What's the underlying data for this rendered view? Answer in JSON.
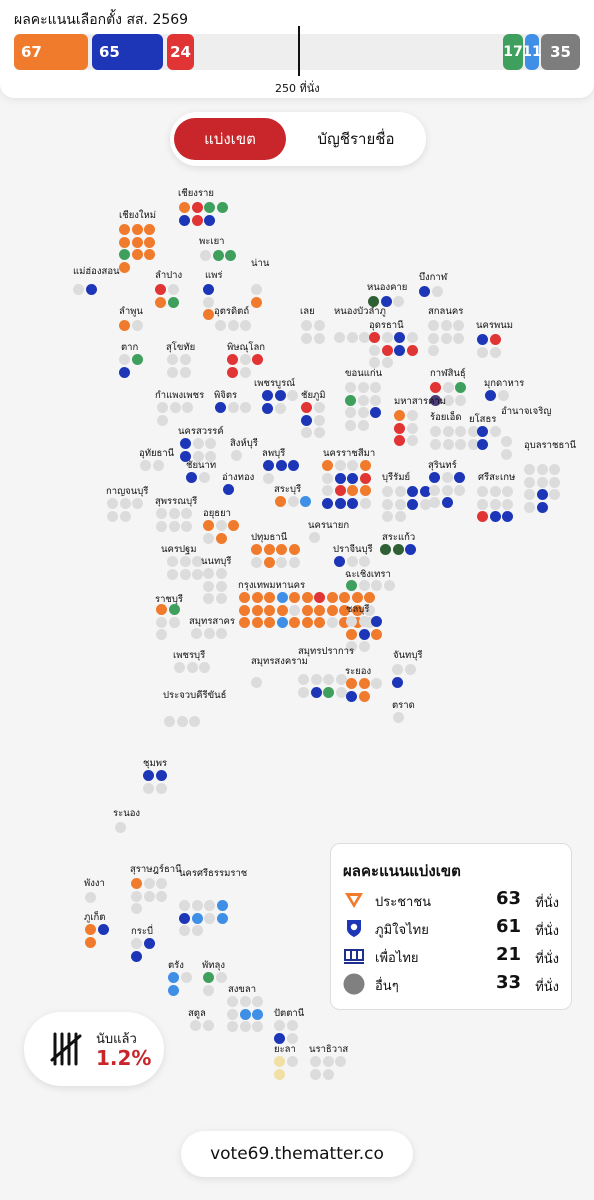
{
  "header": {
    "title": "ผลคะแนนเลือกตั้ง สส. 2569",
    "majority_label": "250 ที่นั่ง",
    "seat_bar": [
      {
        "party": "ประชาชน",
        "seats": "67",
        "color": "#f07b2d"
      },
      {
        "party": "ภูมิใจไทย",
        "seats": "65",
        "color": "#1d36b8"
      },
      {
        "party": "เพื่อไทย",
        "seats": "24",
        "color": "#e13434"
      },
      {
        "party": "green",
        "seats": "17",
        "color": "#3f9f5d"
      },
      {
        "party": "blue",
        "seats": "11",
        "color": "#3f8fe6"
      },
      {
        "party": "อื่นๆ",
        "seats": "35",
        "color": "#7d7d7d"
      }
    ]
  },
  "tabs": {
    "constituency": "แบ่งเขต",
    "party_list": "บัญชีรายชื่อ"
  },
  "colors": {
    "orange": "#f07b2d",
    "navy": "#1d36b8",
    "red": "#e13434",
    "green": "#3f9f5d",
    "lightblue": "#3f8fe6",
    "gray": "#dcdcdc",
    "darkgreen": "#2f5f34",
    "purple": "#4a3a78",
    "cream": "#f1e0a6"
  },
  "map_provinces": [
    {
      "name": "เชียงราย",
      "dots": [
        "o",
        "r",
        "g",
        "g",
        "n",
        "r",
        "n"
      ]
    },
    {
      "name": "เชียงใหม่",
      "dots": [
        "o",
        "o",
        "o",
        "o",
        "o",
        "o",
        "g",
        "o",
        "o",
        "o"
      ]
    },
    {
      "name": "พะเยา",
      "dots": [
        "x",
        "g",
        "g"
      ]
    },
    {
      "name": "น่าน",
      "dots": [
        "x",
        "o"
      ]
    },
    {
      "name": "แม่ฮ่องสอน",
      "dots": [
        "x",
        "n"
      ]
    },
    {
      "name": "ลำปาง",
      "dots": [
        "r",
        "x",
        "o",
        "g"
      ]
    },
    {
      "name": "แพร่",
      "dots": [
        "n",
        "x",
        "o"
      ]
    },
    {
      "name": "ลำพูน",
      "dots": [
        "o",
        "x"
      ]
    },
    {
      "name": "อุตรดิตถ์",
      "dots": [
        "x",
        "x",
        "x"
      ]
    },
    {
      "name": "เลย",
      "dots": [
        "x",
        "x",
        "x",
        "x"
      ]
    },
    {
      "name": "หนองบัวลำภู",
      "dots": [
        "x",
        "x",
        "x"
      ]
    },
    {
      "name": "หนองคาย",
      "dots": [
        "dg",
        "n",
        "x"
      ]
    },
    {
      "name": "บึงกาฬ",
      "dots": [
        "n",
        "x"
      ]
    },
    {
      "name": "อุดรธานี",
      "dots": [
        "r",
        "x",
        "n",
        "x",
        "x",
        "r",
        "n",
        "r",
        "x",
        "x"
      ]
    },
    {
      "name": "สกลนคร",
      "dots": [
        "x",
        "x",
        "x",
        "x",
        "x",
        "x",
        "x"
      ]
    },
    {
      "name": "นครพนม",
      "dots": [
        "n",
        "r",
        "x",
        "x"
      ]
    },
    {
      "name": "ตาก",
      "dots": [
        "x",
        "g",
        "n"
      ]
    },
    {
      "name": "สุโขทัย",
      "dots": [
        "x",
        "x",
        "x",
        "x"
      ]
    },
    {
      "name": "พิษณุโลก",
      "dots": [
        "r",
        "x",
        "r",
        "r",
        "x"
      ]
    },
    {
      "name": "เพชรบูรณ์",
      "dots": [
        "n",
        "n",
        "x",
        "n",
        "x"
      ]
    },
    {
      "name": "ชัยภูมิ",
      "dots": [
        "r",
        "x",
        "n",
        "x",
        "x",
        "x"
      ]
    },
    {
      "name": "ขอนแก่น",
      "dots": [
        "x",
        "x",
        "x",
        "g",
        "x",
        "x",
        "x",
        "x",
        "n",
        "x",
        "x"
      ]
    },
    {
      "name": "กาฬสินธุ์",
      "dots": [
        "r",
        "x",
        "g",
        "p",
        "x",
        "x"
      ]
    },
    {
      "name": "มุกดาหาร",
      "dots": [
        "n",
        "x"
      ]
    },
    {
      "name": "กำแพงเพชร",
      "dots": [
        "x",
        "x",
        "x",
        "x"
      ]
    },
    {
      "name": "พิจิตร",
      "dots": [
        "n",
        "x",
        "x"
      ]
    },
    {
      "name": "มหาสารคาม",
      "dots": [
        "o",
        "x",
        "r",
        "x",
        "r",
        "x"
      ]
    },
    {
      "name": "ร้อยเอ็ด",
      "dots": [
        "x",
        "x",
        "x",
        "x",
        "x",
        "x",
        "x",
        "x"
      ]
    },
    {
      "name": "ยโสธร",
      "dots": [
        "n",
        "x",
        "n"
      ]
    },
    {
      "name": "อำนาจเจริญ",
      "dots": [
        "x",
        "x"
      ]
    },
    {
      "name": "นครสวรรค์",
      "dots": [
        "n",
        "x",
        "x",
        "n",
        "x",
        "x"
      ]
    },
    {
      "name": "อุทัยธานี",
      "dots": [
        "x",
        "x"
      ]
    },
    {
      "name": "สิงห์บุรี",
      "dots": [
        "x"
      ]
    },
    {
      "name": "ชัยนาท",
      "dots": [
        "n",
        "x"
      ]
    },
    {
      "name": "ลพบุรี",
      "dots": [
        "n",
        "n",
        "n",
        "x"
      ]
    },
    {
      "name": "นครราชสีมา",
      "dots": [
        "o",
        "x",
        "x",
        "o",
        "x",
        "n",
        "n",
        "r",
        "x",
        "r",
        "o",
        "o",
        "n",
        "n",
        "n",
        "x"
      ]
    },
    {
      "name": "บุรีรัมย์",
      "dots": [
        "x",
        "x",
        "n",
        "n",
        "x",
        "x",
        "n",
        "x",
        "x",
        "x"
      ]
    },
    {
      "name": "สุรินทร์",
      "dots": [
        "n",
        "x",
        "n",
        "x",
        "x",
        "x",
        "x",
        "n"
      ]
    },
    {
      "name": "ศรีสะเกษ",
      "dots": [
        "x",
        "x",
        "x",
        "x",
        "x",
        "x",
        "r",
        "n",
        "n"
      ]
    },
    {
      "name": "อุบลราชธานี",
      "dots": [
        "x",
        "x",
        "x",
        "x",
        "x",
        "x",
        "x",
        "n",
        "x",
        "x",
        "n"
      ]
    },
    {
      "name": "กาญจนบุรี",
      "dots": [
        "x",
        "x",
        "x",
        "x",
        "x"
      ]
    },
    {
      "name": "อ่างทอง",
      "dots": [
        "n"
      ]
    },
    {
      "name": "สุพรรณบุรี",
      "dots": [
        "x",
        "x",
        "x",
        "x",
        "x",
        "x"
      ]
    },
    {
      "name": "สระบุรี",
      "dots": [
        "o",
        "x",
        "b"
      ]
    },
    {
      "name": "อยุธยา",
      "dots": [
        "o",
        "x",
        "o",
        "x",
        "o"
      ]
    },
    {
      "name": "นครนายก",
      "dots": [
        "x"
      ]
    },
    {
      "name": "ปทุมธานี",
      "dots": [
        "o",
        "o",
        "o",
        "o",
        "x",
        "o",
        "x",
        "x"
      ]
    },
    {
      "name": "สระแก้ว",
      "dots": [
        "dg",
        "dg",
        "n"
      ]
    },
    {
      "name": "ปราจีนบุรี",
      "dots": [
        "n",
        "x",
        "x"
      ]
    },
    {
      "name": "นครปฐม",
      "dots": [
        "x",
        "x",
        "x",
        "x",
        "x",
        "x"
      ]
    },
    {
      "name": "นนทบุรี",
      "dots": [
        "x",
        "x",
        "x",
        "x",
        "x",
        "x"
      ]
    },
    {
      "name": "ฉะเชิงเทรา",
      "dots": [
        "g",
        "x",
        "x",
        "x"
      ]
    },
    {
      "name": "กรุงเทพมหานคร",
      "dots": [
        "o",
        "o",
        "o",
        "b",
        "o",
        "o",
        "r",
        "o",
        "o",
        "o",
        "o",
        "o",
        "o",
        "o",
        "o",
        "x",
        "o",
        "o",
        "o",
        "o",
        "o",
        "x",
        "o",
        "o",
        "o",
        "b",
        "o",
        "o",
        "o",
        "x",
        "o",
        "o",
        "x"
      ]
    },
    {
      "name": "ราชบุรี",
      "dots": [
        "o",
        "g",
        "x",
        "x",
        "x"
      ]
    },
    {
      "name": "สมุทรสาคร",
      "dots": [
        "x",
        "x",
        "x"
      ]
    },
    {
      "name": "ชลบุรี",
      "dots": [
        "x",
        "x",
        "n",
        "o",
        "n",
        "o",
        "x",
        "x"
      ]
    },
    {
      "name": "เพชรบุรี",
      "dots": [
        "x",
        "x",
        "x"
      ]
    },
    {
      "name": "สมุทรสงคราม",
      "dots": [
        "x"
      ]
    },
    {
      "name": "สมุทรปราการ",
      "dots": [
        "x",
        "x",
        "x",
        "x",
        "x",
        "n",
        "g",
        "x"
      ]
    },
    {
      "name": "ระยอง",
      "dots": [
        "o",
        "o",
        "x",
        "n",
        "o"
      ]
    },
    {
      "name": "จันทบุรี",
      "dots": [
        "x",
        "x",
        "n"
      ]
    },
    {
      "name": "ตราด",
      "dots": [
        "x"
      ]
    },
    {
      "name": "ประจวบคีรีขันธ์",
      "dots": [
        "x",
        "x",
        "x"
      ]
    },
    {
      "name": "ชุมพร",
      "dots": [
        "n",
        "n",
        "x",
        "x"
      ]
    },
    {
      "name": "ระนอง",
      "dots": [
        "x"
      ]
    },
    {
      "name": "สุราษฎร์ธานี",
      "dots": [
        "o",
        "x",
        "x",
        "x",
        "x",
        "x",
        "x"
      ]
    },
    {
      "name": "พังงา",
      "dots": [
        "x"
      ]
    },
    {
      "name": "ภูเก็ต",
      "dots": [
        "o",
        "n",
        "o"
      ]
    },
    {
      "name": "นครศรีธรรมราช",
      "dots": [
        "x",
        "x",
        "x",
        "b",
        "n",
        "b",
        "x",
        "b",
        "x",
        "x"
      ]
    },
    {
      "name": "กระบี่",
      "dots": [
        "x",
        "n",
        "n"
      ]
    },
    {
      "name": "ตรัง",
      "dots": [
        "b",
        "x",
        "b"
      ]
    },
    {
      "name": "พัทลุง",
      "dots": [
        "g",
        "x",
        "x"
      ]
    },
    {
      "name": "สงขลา",
      "dots": [
        "x",
        "x",
        "x",
        "x",
        "b",
        "b",
        "x",
        "x",
        "x"
      ]
    },
    {
      "name": "สตูล",
      "dots": [
        "x",
        "x"
      ]
    },
    {
      "name": "ปัตตานี",
      "dots": [
        "x",
        "x",
        "n",
        "x"
      ]
    },
    {
      "name": "ยะลา",
      "dots": [
        "c",
        "x",
        "c"
      ]
    },
    {
      "name": "นราธิวาส",
      "dots": [
        "x",
        "x",
        "x",
        "x",
        "x"
      ]
    }
  ],
  "legend": {
    "title": "ผลคะแนนแบ่งเขต",
    "unit": "ที่นั่ง",
    "rows": [
      {
        "name": "ประชาชน",
        "seats": "63",
        "icon": "people-party-logo",
        "color": "#f07b2d"
      },
      {
        "name": "ภูมิใจไทย",
        "seats": "61",
        "icon": "bhumjaithai-logo",
        "color": "#1d36b8"
      },
      {
        "name": "เพื่อไทย",
        "seats": "21",
        "icon": "pheu-thai-logo",
        "color": "#1d2f8f"
      },
      {
        "name": "อื่นๆ",
        "seats": "33",
        "icon": "other-circle",
        "color": "#808080"
      }
    ]
  },
  "counted": {
    "label": "นับแล้ว",
    "value": "1.2%",
    "icon": "tally-marks-icon"
  },
  "site": {
    "url": "vote69.thematter.co"
  }
}
